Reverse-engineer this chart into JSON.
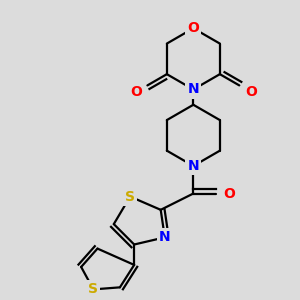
{
  "bg_color": "#dcdcdc",
  "bond_color": "#000000",
  "bond_width": 1.6,
  "atom_colors": {
    "O": "#ff0000",
    "N": "#0000ff",
    "S": "#ccaa00",
    "C": "#000000"
  },
  "font_size": 10,
  "fig_size": [
    3.0,
    3.0
  ],
  "dpi": 100
}
